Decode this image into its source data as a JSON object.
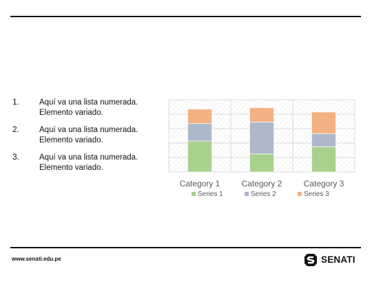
{
  "list": {
    "items": [
      {
        "number": "1.",
        "text": "Aquí va una lista numerada.\nElemento variado."
      },
      {
        "number": "2.",
        "text": "Aquí va una lista numerada.\nElemento variado."
      },
      {
        "number": "3.",
        "text": "Aquí va una lista numerada.\nElemento variado."
      }
    ]
  },
  "footer": {
    "url": "www.senati.edu.pe",
    "brand": "SENATI",
    "brand_icon": "senati-logo-icon"
  },
  "chart_data": {
    "type": "bar",
    "stacked": true,
    "categories": [
      "Category 1",
      "Category 2",
      "Category 3"
    ],
    "series": [
      {
        "name": "Series 1",
        "color": "#a9d18e",
        "values": [
          4.3,
          2.5,
          3.5
        ]
      },
      {
        "name": "Series 2",
        "color": "#adb9ca",
        "values": [
          2.4,
          4.4,
          1.8
        ]
      },
      {
        "name": "Series 3",
        "color": "#f4b183",
        "values": [
          2.0,
          2.0,
          3.0
        ]
      }
    ],
    "ylim": [
      0,
      10
    ],
    "grid": true,
    "legend": "bottom"
  },
  "colors": {
    "grid": "#d9d9d9",
    "plot_border": "#d9d9d9",
    "axis_text": "#595959"
  }
}
